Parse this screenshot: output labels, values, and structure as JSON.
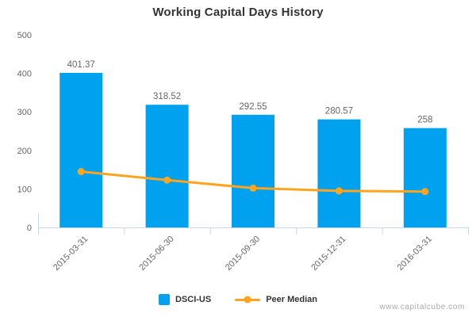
{
  "header": {
    "title": "Working Capital Days History"
  },
  "legend": {
    "items": [
      {
        "label": "DSCI-US",
        "type": "bar"
      },
      {
        "label": "Peer Median",
        "type": "line"
      }
    ]
  },
  "watermark": "www.capitalcube.com",
  "colors": {
    "bar": "#00a1ef",
    "line": "#ffa41e",
    "axis": "#c8d7e8",
    "title_text": "#333333",
    "label_text": "#666666",
    "legend_text": "#333333",
    "watermark_text": "#aaaaaa"
  },
  "chart_data": {
    "type": "bar",
    "title": "Working Capital Days History",
    "categories": [
      "2015-03-31",
      "2015-06-30",
      "2015-09-30",
      "2015-12-31",
      "2016-03-31"
    ],
    "series": [
      {
        "name": "DSCI-US",
        "type": "bar",
        "values": [
          401.37,
          318.52,
          292.55,
          280.57,
          258
        ],
        "labels": [
          "401.37",
          "318.52",
          "292.55",
          "280.57",
          "258"
        ]
      },
      {
        "name": "Peer Median",
        "type": "line",
        "values": [
          145,
          123,
          102,
          95,
          93
        ]
      }
    ],
    "xlabel": "",
    "ylabel": "",
    "ylim": [
      0,
      500
    ],
    "yticks": [
      0,
      100,
      200,
      300,
      400,
      500
    ],
    "grid": false,
    "legend_position": "bottom",
    "xlabel_rotation": -45
  }
}
